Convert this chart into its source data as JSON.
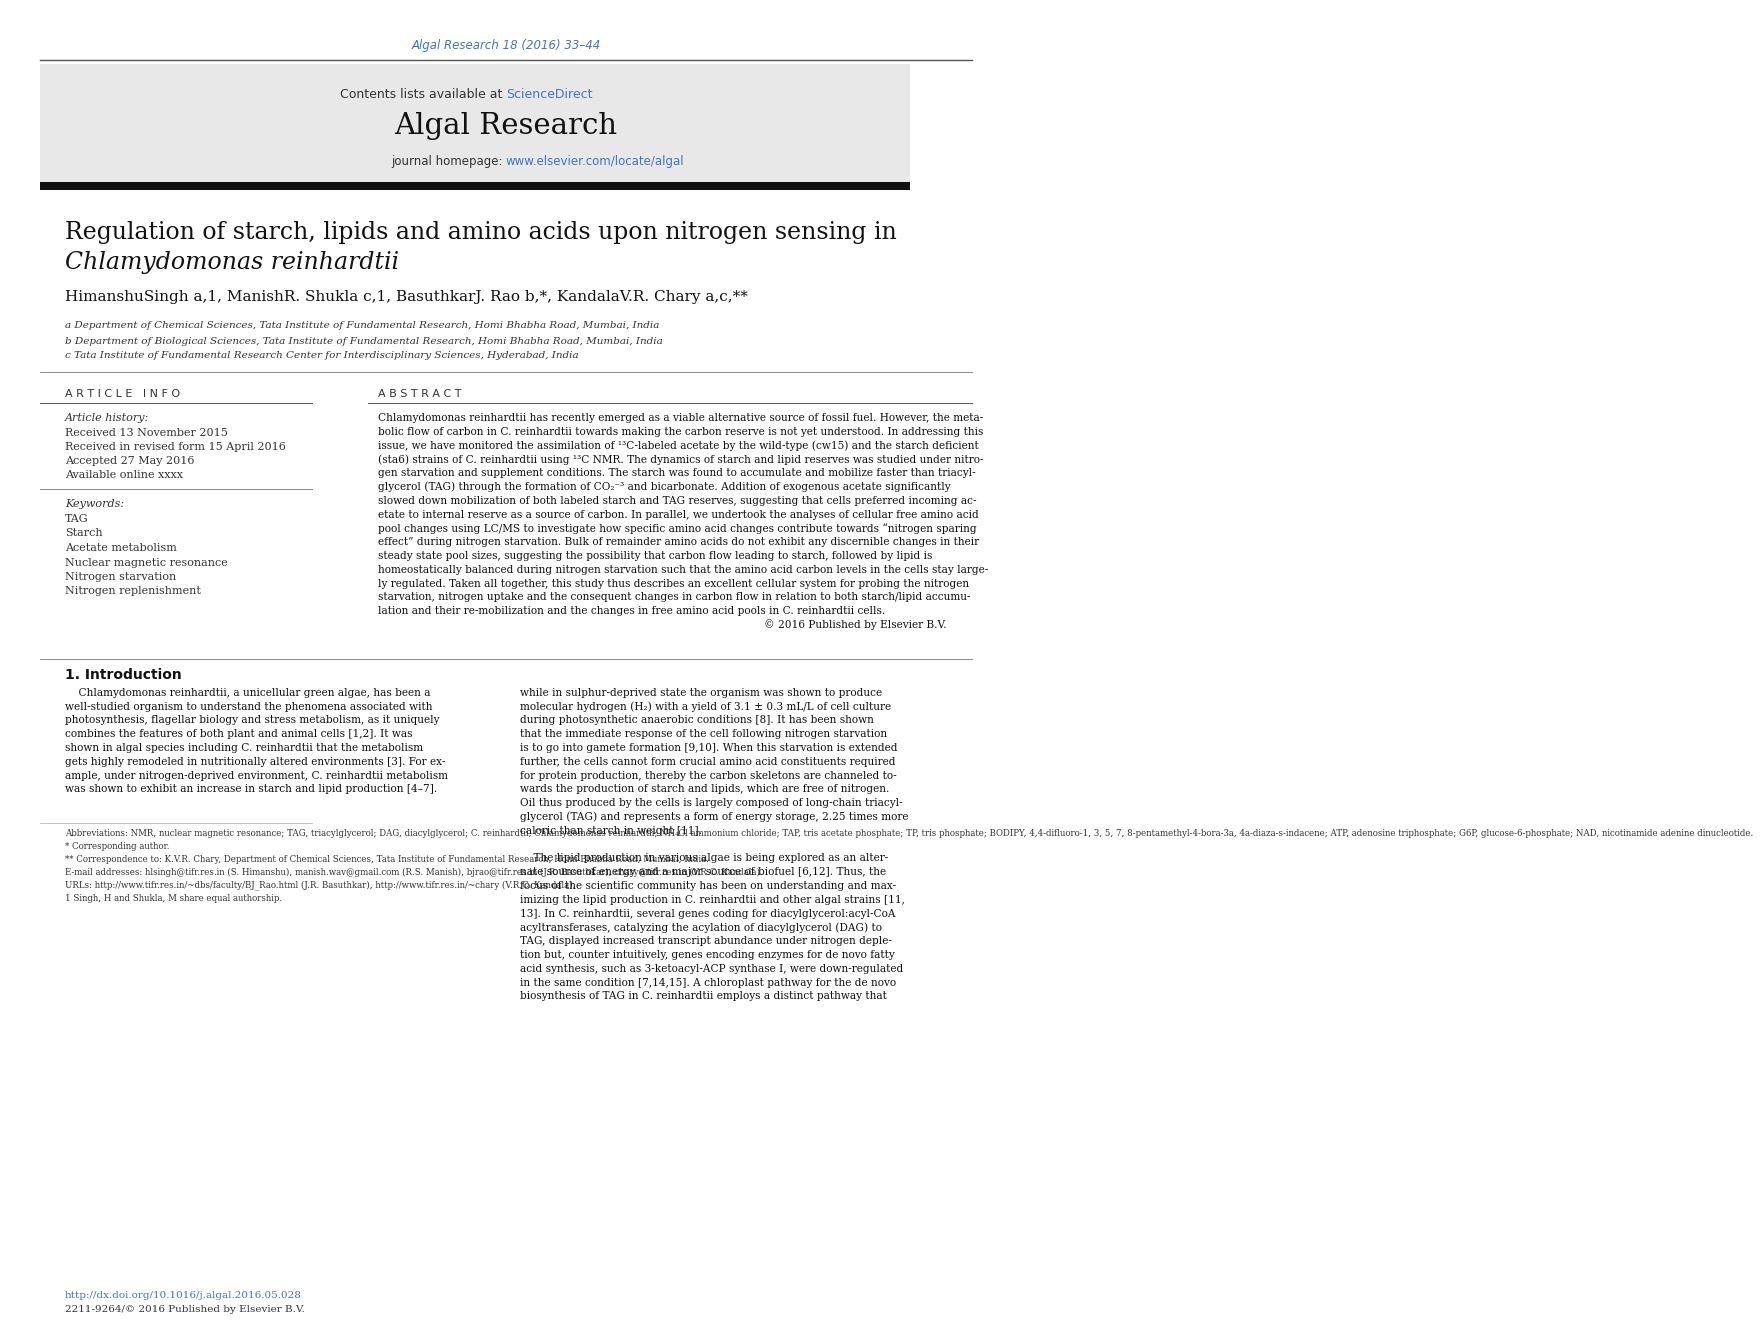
{
  "page_bg": "#ffffff",
  "top_citation": "Algal Research 18 (2016) 33–44",
  "top_citation_color": "#4472c4",
  "journal_header_bg": "#e8e8e8",
  "journal_name": "Algal Research",
  "contents_text": "Contents lists available at ",
  "sciencedirect_text": "ScienceDirect",
  "sciencedirect_color": "#4472c4",
  "homepage_text": "journal homepage: ",
  "homepage_url": "www.elsevier.com/locate/algal",
  "homepage_url_color": "#4472c4",
  "title_line1": "Regulation of starch, lipids and amino acids upon nitrogen sensing in",
  "title_line2_italic": "Chlamydomonas reinhardtii",
  "title_fontsize": 17,
  "authors": "HimanshuSingh a,1, ManishR. Shukla c,1, BasuthkarJ. Rao b,*, KandalaV.R. Chary a,c,**",
  "affil_a": "a Department of Chemical Sciences, Tata Institute of Fundamental Research, Homi Bhabha Road, Mumbai, India",
  "affil_b": "b Department of Biological Sciences, Tata Institute of Fundamental Research, Homi Bhabha Road, Mumbai, India",
  "affil_c": "c Tata Institute of Fundamental Research Center for Interdisciplinary Sciences, Hyderabad, India",
  "article_info_title": "A R T I C L E   I N F O",
  "abstract_title": "A B S T R A C T",
  "article_history_label": "Article history:",
  "received1": "Received 13 November 2015",
  "received2": "Received in revised form 15 April 2016",
  "accepted": "Accepted 27 May 2016",
  "available": "Available online xxxx",
  "keywords_label": "Keywords:",
  "keywords": [
    "TAG",
    "Starch",
    "Acetate metabolism",
    "Nuclear magnetic resonance",
    "Nitrogen starvation",
    "Nitrogen replenishment"
  ],
  "abstract_lines": [
    "Chlamydomonas reinhardtii has recently emerged as a viable alternative source of fossil fuel. However, the meta-",
    "bolic flow of carbon in C. reinhardtii towards making the carbon reserve is not yet understood. In addressing this",
    "issue, we have monitored the assimilation of ¹³C-labeled acetate by the wild-type (cw15) and the starch deficient",
    "(sta6) strains of C. reinhardtii using ¹³C NMR. The dynamics of starch and lipid reserves was studied under nitro-",
    "gen starvation and supplement conditions. The starch was found to accumulate and mobilize faster than triacyl-",
    "glycerol (TAG) through the formation of CO₂⁻³ and bicarbonate. Addition of exogenous acetate significantly",
    "slowed down mobilization of both labeled starch and TAG reserves, suggesting that cells preferred incoming ac-",
    "etate to internal reserve as a source of carbon. In parallel, we undertook the analyses of cellular free amino acid",
    "pool changes using LC/MS to investigate how specific amino acid changes contribute towards “nitrogen sparing",
    "effect” during nitrogen starvation. Bulk of remainder amino acids do not exhibit any discernible changes in their",
    "steady state pool sizes, suggesting the possibility that carbon flow leading to starch, followed by lipid is",
    "homeostatically balanced during nitrogen starvation such that the amino acid carbon levels in the cells stay large-",
    "ly regulated. Taken all together, this study thus describes an excellent cellular system for probing the nitrogen",
    "starvation, nitrogen uptake and the consequent changes in carbon flow in relation to both starch/lipid accumu-",
    "lation and their re-mobilization and the changes in free amino acid pools in C. reinhardtii cells."
  ],
  "copyright": "© 2016 Published by Elsevier B.V.",
  "intro_heading": "1. Introduction",
  "intro_col1_lines": [
    "    Chlamydomonas reinhardtii, a unicellular green algae, has been a",
    "well-studied organism to understand the phenomena associated with",
    "photosynthesis, flagellar biology and stress metabolism, as it uniquely",
    "combines the features of both plant and animal cells [1,2]. It was",
    "shown in algal species including C. reinhardtii that the metabolism",
    "gets highly remodeled in nutritionally altered environments [3]. For ex-",
    "ample, under nitrogen-deprived environment, C. reinhardtii metabolism",
    "was shown to exhibit an increase in starch and lipid production [4–7]."
  ],
  "intro_col2_lines": [
    "while in sulphur-deprived state the organism was shown to produce",
    "molecular hydrogen (H₂) with a yield of 3.1 ± 0.3 mL/L of cell culture",
    "during photosynthetic anaerobic conditions [8]. It has been shown",
    "that the immediate response of the cell following nitrogen starvation",
    "is to go into gamete formation [9,10]. When this starvation is extended",
    "further, the cells cannot form crucial amino acid constituents required",
    "for protein production, thereby the carbon skeletons are channeled to-",
    "wards the production of starch and lipids, which are free of nitrogen.",
    "Oil thus produced by the cells is largely composed of long-chain triacyl-",
    "glycerol (TAG) and represents a form of energy storage, 2.25 times more",
    "caloric than starch in weight [11]."
  ],
  "intro_col2b_lines": [
    "    The lipid production in various algae is being explored as an alter-",
    "nate source of energy and a major source of biofuel [6,12]. Thus, the",
    "focus of the scientific community has been on understanding and max-",
    "imizing the lipid production in C. reinhardtii and other algal strains [11,",
    "13]. In C. reinhardtii, several genes coding for diacylglycerol:acyl-CoA",
    "acyltransferases, catalyzing the acylation of diacylglycerol (DAG) to",
    "TAG, displayed increased transcript abundance under nitrogen deple-",
    "tion but, counter intuitively, genes encoding enzymes for de novo fatty",
    "acid synthesis, such as 3-ketoacyl-ACP synthase I, were down-regulated",
    "in the same condition [7,14,15]. A chloroplast pathway for the de novo",
    "biosynthesis of TAG in C. reinhardtii employs a distinct pathway that"
  ],
  "footnote_abbrev": "Abbreviations: NMR, nuclear magnetic resonance; TAG, triacylglycerol; DAG, diacylglycerol; C. reinhardtii, Chlamydomonas reinhardtii; NH₄Cl ammonium chloride; TAP, tris acetate phosphate; TP, tris phosphate; BODIPY, 4,4-difluoro-1, 3, 5, 7, 8-pentamethyl-4-bora-3a, 4a-diaza-s-indacene; ATP, adenosine triphosphate; G6P, glucose-6-phosphate; NAD, nicotinamide adenine dinucleotide.",
  "footnote_corr1": "* Corresponding author.",
  "footnote_corr2": "** Correspondence to: K.V.R. Chary, Department of Chemical Sciences, Tata Institute of Fundamental Research, Homi Bhabha Road, Mumbai, India.",
  "footnote_email": "E-mail addresses: hlsingh@tifr.res.in (S. Himanshu), manish.wav@gmail.com (R.S. Manish), bjrao@tifr.res.in (J.R. Basuthkar), chary@tifr.res.in (V.R.C. Kandala).",
  "footnote_url": "URLs: http://www.tifr.res.in/~dbs/faculty/BJ_Rao.html (J.R. Basuthkar), http://www.tifr.res.in/~chary (V.R.C. Kandala).",
  "footnote_equal": "1 Singh, H and Shukla, M share equal authorship.",
  "doi": "http://dx.doi.org/10.1016/j.algal.2016.05.028",
  "issn": "2211-9264/© 2016 Published by Elsevier B.V."
}
